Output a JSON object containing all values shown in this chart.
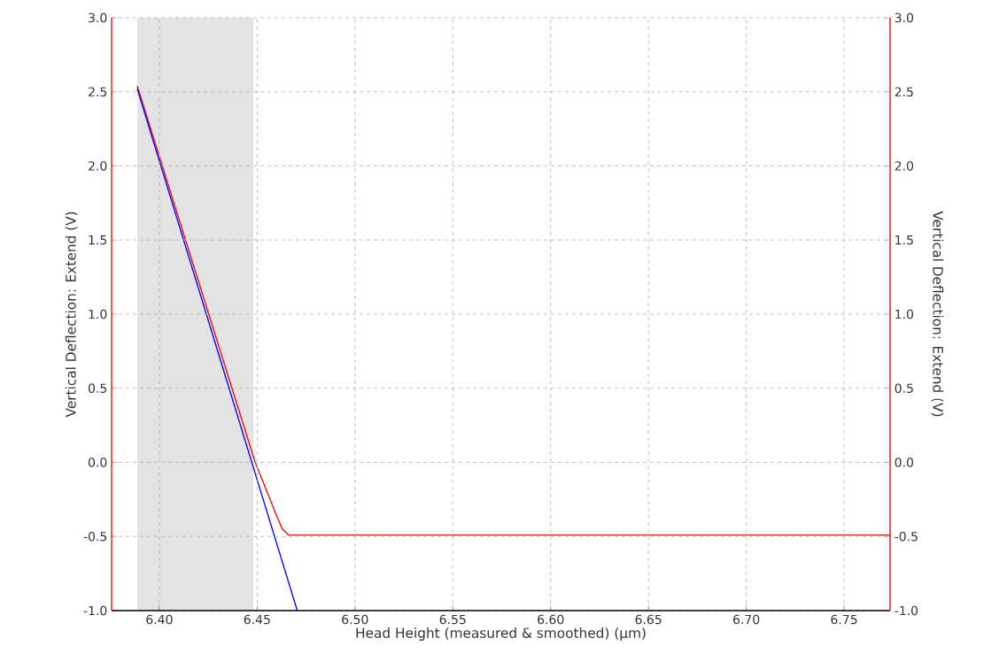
{
  "chart_data": {
    "type": "line",
    "xlabel": "Head Height (measured & smoothed) (µm)",
    "ylabel": "Vertical Deflection: Extend (V)",
    "y2label": "Vertical Deflection: Extend (V)",
    "xlim": [
      6.3756,
      6.7735
    ],
    "ylim": [
      -1.0,
      3.0
    ],
    "y2lim": [
      -1.0,
      3.0
    ],
    "xticks": [
      {
        "value": 6.4,
        "label": "6.40"
      },
      {
        "value": 6.45,
        "label": "6.45"
      },
      {
        "value": 6.5,
        "label": "6.50"
      },
      {
        "value": 6.55,
        "label": "6.55"
      },
      {
        "value": 6.6,
        "label": "6.60"
      },
      {
        "value": 6.65,
        "label": "6.65"
      },
      {
        "value": 6.7,
        "label": "6.70"
      },
      {
        "value": 6.75,
        "label": "6.75"
      }
    ],
    "yticks": [
      {
        "value": -1.0,
        "label": "-1.0"
      },
      {
        "value": -0.5,
        "label": "-0.5"
      },
      {
        "value": 0.0,
        "label": "0.0"
      },
      {
        "value": 0.5,
        "label": "0.5"
      },
      {
        "value": 1.0,
        "label": "1.0"
      },
      {
        "value": 1.5,
        "label": "1.5"
      },
      {
        "value": 2.0,
        "label": "2.0"
      },
      {
        "value": 2.5,
        "label": "2.5"
      },
      {
        "value": 3.0,
        "label": "3.0"
      }
    ],
    "y2ticks": [
      {
        "value": -1.0,
        "label": "-1.0"
      },
      {
        "value": -0.5,
        "label": "-0.5"
      },
      {
        "value": 0.0,
        "label": "0.0"
      },
      {
        "value": 0.5,
        "label": "0.5"
      },
      {
        "value": 1.0,
        "label": "1.0"
      },
      {
        "value": 1.5,
        "label": "1.5"
      },
      {
        "value": 2.0,
        "label": "2.0"
      },
      {
        "value": 2.5,
        "label": "2.5"
      },
      {
        "value": 3.0,
        "label": "3.0"
      }
    ],
    "grid": true,
    "marker": "none",
    "line_style": "solid",
    "bands": [
      {
        "axis": "x",
        "from": 6.3887,
        "to": 6.4482,
        "color": "#e3e3e3"
      }
    ],
    "series": [
      {
        "color": "#ff0000",
        "x": [
          6.3887,
          6.449,
          6.459,
          6.4628,
          6.466,
          6.7735
        ],
        "values": [
          2.54,
          0.0,
          -0.33,
          -0.45,
          -0.49,
          -0.49
        ]
      },
      {
        "color": "#0000ff",
        "x": [
          6.3887,
          6.4705
        ],
        "values": [
          2.52,
          -1.0
        ]
      }
    ]
  }
}
